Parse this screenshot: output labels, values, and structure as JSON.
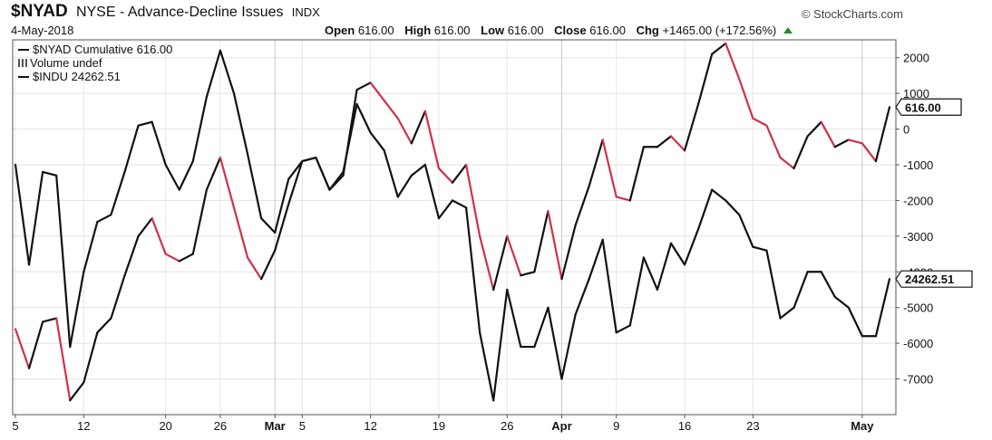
{
  "header": {
    "symbol": "$NYAD",
    "description": "NYSE - Advance-Decline Issues",
    "exchange": "INDX",
    "credit": "© StockCharts.com",
    "date": "4-May-2018",
    "open_label": "Open",
    "open_value": "616.00",
    "high_label": "High",
    "high_value": "616.00",
    "low_label": "Low",
    "low_value": "616.00",
    "close_label": "Close",
    "close_value": "616.00",
    "chg_label": "Chg",
    "chg_value": "+1465.00 (+172.56%)",
    "up_color": "#2a8a2a"
  },
  "legend": {
    "nyad": "$NYAD Cumulative 616.00",
    "volume": "Volume undef",
    "indu": "$INDU 24262.51"
  },
  "chart_data": {
    "type": "line",
    "title": "",
    "x_ticks": [
      "5",
      "12",
      "20",
      "26",
      "Mar",
      "5",
      "12",
      "19",
      "26",
      "Apr",
      "9",
      "16",
      "23",
      "May"
    ],
    "x_major_ticks": [
      "Mar",
      "Apr",
      "May"
    ],
    "ylim": [
      -8000,
      2500
    ],
    "y_ticks": [
      2000,
      1000,
      0,
      -1000,
      -2000,
      -3000,
      -4000,
      -5000,
      -6000,
      -7000
    ],
    "y_tick_labels": [
      "2000",
      "1000",
      "0",
      "-1000",
      "-2000",
      "-3000",
      "-4000",
      "-5000",
      "-6000",
      "-7000"
    ],
    "grid": true,
    "legend_position": "top-left",
    "up_color": "#111111",
    "down_color": "#d0304a",
    "series": [
      {
        "name": "$NYAD Cumulative",
        "last_label": "616.00",
        "values": [
          -5600,
          -6700,
          -5400,
          -5300,
          -7600,
          -7100,
          -5700,
          -5300,
          -4100,
          -3000,
          -2500,
          -3500,
          -3700,
          -3500,
          -1700,
          -800,
          -2200,
          -3600,
          -4200,
          -3400,
          -2100,
          -900,
          -800,
          -1700,
          -1300,
          1100,
          1300,
          800,
          300,
          -400,
          500,
          -1100,
          -1500,
          -1000,
          -3000,
          -4500,
          -3000,
          -4100,
          -4000,
          -2300,
          -4200,
          -2700,
          -1600,
          -300,
          -1900,
          -2000,
          -500,
          -500,
          -200,
          -600,
          700,
          2100,
          2400,
          1400,
          300,
          100,
          -800,
          -1100,
          -200,
          200,
          -500,
          -300,
          -400,
          -900,
          616
        ]
      },
      {
        "name": "$INDU",
        "last_label": "24262.51",
        "values": [
          -1000,
          -3800,
          -1200,
          -1300,
          -6100,
          -4000,
          -2600,
          -2400,
          -1200,
          100,
          200,
          -1000,
          -1700,
          -900,
          900,
          2200,
          1000,
          -700,
          -2500,
          -2900,
          -1400,
          -900,
          -800,
          -1700,
          -1200,
          700,
          -100,
          -600,
          -1900,
          -1300,
          -1000,
          -2500,
          -2000,
          -2200,
          -5700,
          -7600,
          -4500,
          -6100,
          -6100,
          -5000,
          -7000,
          -5200,
          -4200,
          -3100,
          -5700,
          -5500,
          -3600,
          -4500,
          -3200,
          -3800,
          -2800,
          -1700,
          -2000,
          -2400,
          -3300,
          -3400,
          -5300,
          -5000,
          -4000,
          -4000,
          -4700,
          -5000,
          -5800,
          -5800,
          -4200
        ]
      }
    ]
  }
}
